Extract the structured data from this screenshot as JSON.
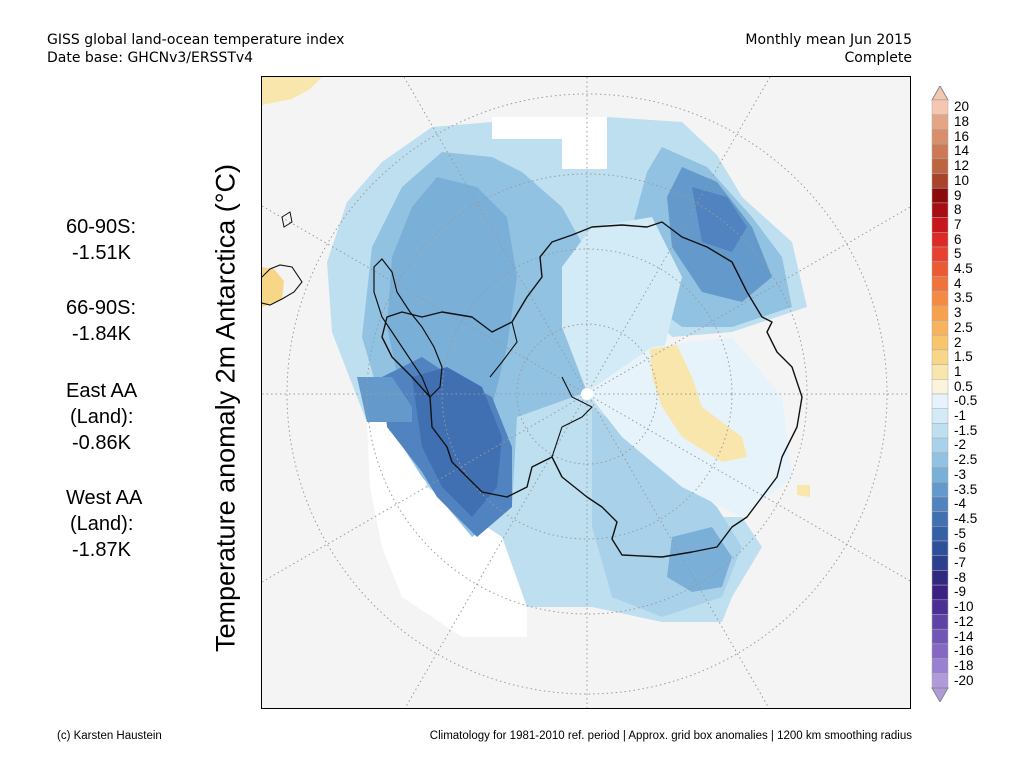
{
  "header": {
    "title": "GISS global land-ocean temperature index",
    "database": "Date base: GHCNv3/ERSSTv4",
    "period": "Monthly mean Jun 2015",
    "status": "Complete"
  },
  "stats": [
    {
      "label": "60-90S:",
      "value": "-1.51K"
    },
    {
      "label": "66-90S:",
      "value": "-1.84K"
    },
    {
      "label": "East AA",
      "sublabel": "(Land):",
      "value": "-0.86K"
    },
    {
      "label": "West AA",
      "sublabel": "(Land):",
      "value": "-1.87K"
    }
  ],
  "map": {
    "axis_label": "Temperature anomaly 2m Antarctica (°C)",
    "projection": "south-polar-stereographic",
    "region": "Antarctica"
  },
  "colorbar": {
    "levels": [
      "20",
      "18",
      "16",
      "14",
      "12",
      "10",
      "9",
      "8",
      "7",
      "6",
      "5",
      "4.5",
      "4",
      "3.5",
      "3",
      "2.5",
      "2",
      "1.5",
      "1",
      "0.5",
      "-0.5",
      "-1",
      "-1.5",
      "-2",
      "-2.5",
      "-3",
      "-3.5",
      "-4",
      "-4.5",
      "-5",
      "-6",
      "-7",
      "-8",
      "-9",
      "-10",
      "-12",
      "-14",
      "-16",
      "-18",
      "-20"
    ],
    "colors": [
      "#f5c7b0",
      "#e3a585",
      "#d98f6c",
      "#cb7a55",
      "#bd6540",
      "#a8442a",
      "#8c0a0a",
      "#a80f14",
      "#c8161c",
      "#dd2a26",
      "#e6422f",
      "#ec5a35",
      "#f0733c",
      "#f58a45",
      "#f7a14f",
      "#f9b35e",
      "#f8c46c",
      "#f7d688",
      "#f8e6ad",
      "#fbf3dc",
      "#e6f3fb",
      "#d3ebf6",
      "#bedff0",
      "#a9d2ea",
      "#91c2e2",
      "#7aafd8",
      "#6499cb",
      "#5083bf",
      "#4170b2",
      "#3660a6",
      "#2f4f9a",
      "#2c3f8c",
      "#2f2a80",
      "#3a2284",
      "#4b2f95",
      "#5e42a6",
      "#7056b6",
      "#8468c3",
      "#9a80d0",
      "#b09adb"
    ]
  },
  "footer": {
    "credit": "(c) Karsten Haustein",
    "note": "Climatology for 1981-2010 ref. period | Approx. grid box anomalies | 1200 km smoothing radius"
  }
}
